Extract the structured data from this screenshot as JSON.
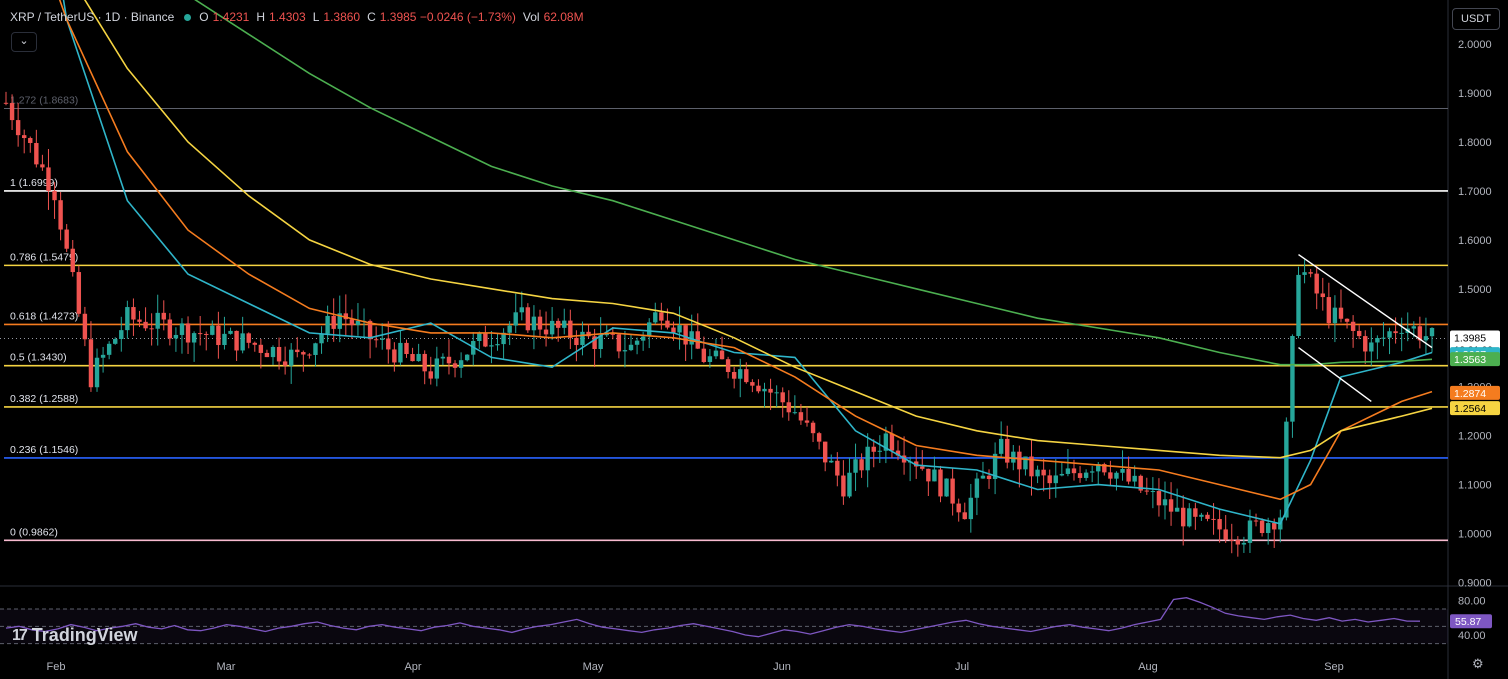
{
  "header": {
    "symbol": "XRP / TetherUS · 1D · Binance",
    "o_label": "O",
    "o_value": "1.4231",
    "h_label": "H",
    "h_value": "1.4303",
    "l_label": "L",
    "l_value": "1.3860",
    "c_label": "C",
    "c_value": "1.3985 −0.0246 (−1.73%)",
    "vol_label": "Vol",
    "vol_value": "62.08M"
  },
  "currency_button": "USDT",
  "collapse_icon": "chevron-down-icon",
  "logo_text": "TradingView",
  "settings_icon": "gear-icon",
  "colors": {
    "up": "#26a69a",
    "down": "#ef5350",
    "background": "#000000",
    "ema20": "#2fb5c9",
    "ema50": "#f57c1f",
    "ema100": "#f5d442",
    "ema200": "#4caf50",
    "rsi": "#7e57c2"
  },
  "chart_data": {
    "type": "candlestick",
    "price_axis": {
      "ticks": [
        "2.0000",
        "1.9000",
        "1.8000",
        "1.7000",
        "1.6000",
        "1.5000",
        "1.4000",
        "1.3000",
        "1.2000",
        "1.1000",
        "1.0000",
        "0.9000"
      ],
      "range": [
        0.895,
        2.09
      ]
    },
    "time_axis": [
      "Feb",
      "Mar",
      "Apr",
      "May",
      "Jun",
      "Jul",
      "Aug",
      "Sep"
    ],
    "fib_levels": [
      {
        "label": "1 (1.6999)",
        "value": 1.6999,
        "color": "#ffffff"
      },
      {
        "label": "0.786 (1.5479)",
        "value": 1.5479,
        "color": "#f5d442"
      },
      {
        "label": "0.618 (1.4273)",
        "value": 1.4273,
        "color": "#f57c1f"
      },
      {
        "label": "0.5 (1.3430)",
        "value": 1.343,
        "color": "#f5d442"
      },
      {
        "label": "0.382 (1.2588)",
        "value": 1.2588,
        "color": "#f5d442"
      },
      {
        "label": "0.236 (1.1546)",
        "value": 1.1546,
        "color": "#2962ff"
      },
      {
        "label": "0 (0.9862)",
        "value": 0.9862,
        "color": "#f8bbd0"
      },
      {
        "label": "1.272 (1.8683)",
        "value": 1.8683,
        "color": "#5d606b"
      }
    ],
    "price_labels": [
      {
        "text": "1.3985",
        "sub": "13:31:09",
        "value": 1.3985,
        "bg": "#ffffff",
        "fg": "#000000"
      },
      {
        "text": "1.3667",
        "value": 1.3667,
        "bg": "#2fb5c9",
        "fg": "#ffffff"
      },
      {
        "text": "1.3563",
        "value": 1.3563,
        "bg": "#4caf50",
        "fg": "#ffffff"
      },
      {
        "text": "1.2874",
        "value": 1.2874,
        "bg": "#f57c1f",
        "fg": "#ffffff"
      },
      {
        "text": "1.2564",
        "value": 1.2564,
        "bg": "#f5d442",
        "fg": "#000000"
      }
    ],
    "series": [
      {
        "kind": "ema",
        "color": "#2fb5c9",
        "points": [
          [
            0,
            2.82
          ],
          [
            10,
            2.05
          ],
          [
            20,
            1.68
          ],
          [
            30,
            1.53
          ],
          [
            40,
            1.47
          ],
          [
            50,
            1.41
          ],
          [
            60,
            1.4
          ],
          [
            70,
            1.43
          ],
          [
            80,
            1.36
          ],
          [
            90,
            1.34
          ],
          [
            100,
            1.42
          ],
          [
            110,
            1.41
          ],
          [
            120,
            1.37
          ],
          [
            130,
            1.36
          ],
          [
            140,
            1.21
          ],
          [
            150,
            1.14
          ],
          [
            160,
            1.13
          ],
          [
            170,
            1.09
          ],
          [
            180,
            1.1
          ],
          [
            190,
            1.09
          ],
          [
            200,
            1.05
          ],
          [
            210,
            1.02
          ],
          [
            215,
            1.15
          ],
          [
            220,
            1.32
          ],
          [
            230,
            1.35
          ],
          [
            235,
            1.37
          ]
        ]
      },
      {
        "kind": "ema",
        "color": "#f57c1f",
        "points": [
          [
            0,
            2.4
          ],
          [
            10,
            2.05
          ],
          [
            20,
            1.78
          ],
          [
            30,
            1.62
          ],
          [
            40,
            1.53
          ],
          [
            50,
            1.46
          ],
          [
            60,
            1.43
          ],
          [
            70,
            1.41
          ],
          [
            80,
            1.41
          ],
          [
            90,
            1.4
          ],
          [
            100,
            1.41
          ],
          [
            110,
            1.4
          ],
          [
            120,
            1.38
          ],
          [
            130,
            1.32
          ],
          [
            140,
            1.24
          ],
          [
            150,
            1.18
          ],
          [
            160,
            1.16
          ],
          [
            170,
            1.15
          ],
          [
            180,
            1.14
          ],
          [
            190,
            1.13
          ],
          [
            200,
            1.1
          ],
          [
            210,
            1.07
          ],
          [
            215,
            1.1
          ],
          [
            220,
            1.21
          ],
          [
            230,
            1.27
          ],
          [
            235,
            1.29
          ]
        ]
      },
      {
        "kind": "ema",
        "color": "#f5d442",
        "points": [
          [
            0,
            2.35
          ],
          [
            10,
            2.15
          ],
          [
            20,
            1.95
          ],
          [
            30,
            1.8
          ],
          [
            40,
            1.69
          ],
          [
            50,
            1.6
          ],
          [
            60,
            1.55
          ],
          [
            70,
            1.52
          ],
          [
            80,
            1.5
          ],
          [
            90,
            1.48
          ],
          [
            100,
            1.47
          ],
          [
            110,
            1.45
          ],
          [
            120,
            1.4
          ],
          [
            130,
            1.34
          ],
          [
            140,
            1.29
          ],
          [
            150,
            1.24
          ],
          [
            160,
            1.21
          ],
          [
            170,
            1.19
          ],
          [
            180,
            1.18
          ],
          [
            190,
            1.17
          ],
          [
            200,
            1.16
          ],
          [
            210,
            1.155
          ],
          [
            215,
            1.17
          ],
          [
            220,
            1.21
          ],
          [
            230,
            1.24
          ],
          [
            235,
            1.256
          ]
        ]
      },
      {
        "kind": "ema",
        "color": "#4caf50",
        "points": [
          [
            30,
            2.1
          ],
          [
            40,
            2.02
          ],
          [
            50,
            1.94
          ],
          [
            60,
            1.87
          ],
          [
            70,
            1.81
          ],
          [
            80,
            1.75
          ],
          [
            90,
            1.71
          ],
          [
            100,
            1.68
          ],
          [
            110,
            1.64
          ],
          [
            120,
            1.6
          ],
          [
            130,
            1.56
          ],
          [
            140,
            1.53
          ],
          [
            150,
            1.5
          ],
          [
            160,
            1.47
          ],
          [
            170,
            1.44
          ],
          [
            180,
            1.42
          ],
          [
            190,
            1.4
          ],
          [
            200,
            1.37
          ],
          [
            210,
            1.345
          ],
          [
            215,
            1.345
          ],
          [
            220,
            1.35
          ],
          [
            230,
            1.352
          ],
          [
            235,
            1.356
          ]
        ]
      },
      {
        "kind": "trend",
        "color": "#ffffff",
        "points": [
          [
            213,
            1.57
          ],
          [
            235,
            1.38
          ]
        ]
      },
      {
        "kind": "trend",
        "color": "#ffffff",
        "points": [
          [
            213,
            1.38
          ],
          [
            225,
            1.27
          ]
        ]
      }
    ],
    "rsi": {
      "axis_ticks": [
        "80.00",
        "40.00"
      ],
      "current_label": "55.87",
      "current": 55.87,
      "values": [
        48,
        50,
        46,
        44,
        47,
        52,
        49,
        45,
        48,
        50,
        53,
        49,
        47,
        51,
        46,
        45,
        48,
        52,
        50,
        47,
        44,
        48,
        50,
        53,
        55,
        51,
        48,
        46,
        50,
        52,
        49,
        47,
        45,
        49,
        51,
        54,
        50,
        48,
        46,
        43,
        47,
        50,
        52,
        55,
        58,
        53,
        49,
        47,
        45,
        43,
        46,
        48,
        51,
        53,
        50,
        47,
        44,
        40,
        38,
        42,
        46,
        44,
        41,
        45,
        49,
        52,
        50,
        47,
        45,
        43,
        46,
        49,
        52,
        55,
        57,
        53,
        50,
        48,
        46,
        44,
        47,
        50,
        52,
        49,
        47,
        45,
        48,
        52,
        55,
        58,
        81,
        83,
        78,
        72,
        65,
        62,
        60,
        58,
        61,
        63,
        59,
        57,
        60,
        56,
        58,
        55,
        57,
        59,
        56,
        55.87
      ]
    }
  }
}
